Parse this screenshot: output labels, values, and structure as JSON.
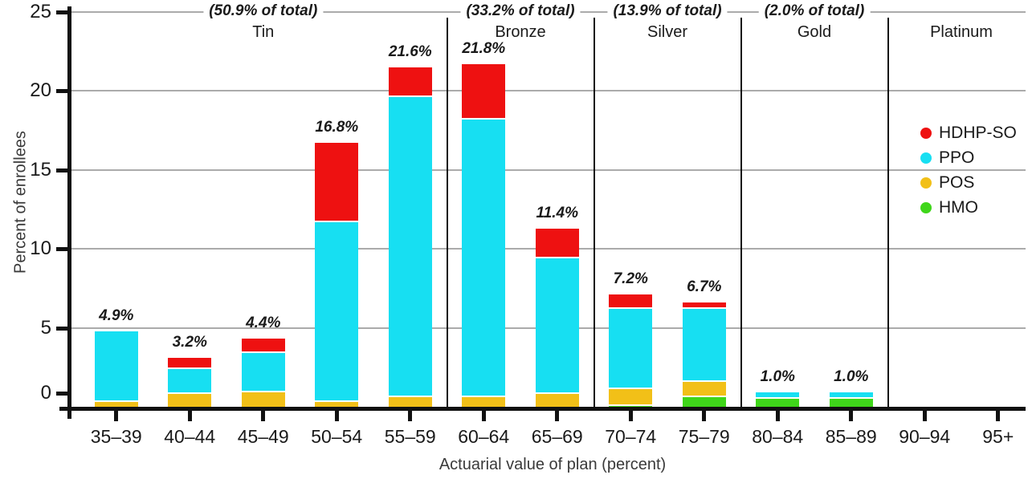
{
  "chart_data": {
    "type": "bar",
    "subtype": "stacked-vertical",
    "title": "",
    "ylabel": "Percent of enrollees",
    "xlabel": "Actuarial value of plan (percent)",
    "ylim": [
      0,
      25
    ],
    "yticks": [
      0,
      5,
      10,
      15,
      20,
      25
    ],
    "grid": "horizontal-gray-lines",
    "legend_position": "right",
    "stack_order_bottom_to_top": [
      "HMO",
      "POS",
      "PPO",
      "HDHP-SO"
    ],
    "legend": [
      {
        "name": "HDHP-SO",
        "color": "#ee1111"
      },
      {
        "name": "PPO",
        "color": "#17dff2"
      },
      {
        "name": "POS",
        "color": "#f2c018"
      },
      {
        "name": "HMO",
        "color": "#3fd61a"
      }
    ],
    "groups": [
      {
        "name": "Tin",
        "share_label": "(50.9% of total)",
        "categories": [
          "35–39",
          "40–44",
          "45–49",
          "50–54",
          "55–59"
        ]
      },
      {
        "name": "Bronze",
        "share_label": "(33.2% of total)",
        "categories": [
          "60–64",
          "65–69"
        ]
      },
      {
        "name": "Silver",
        "share_label": "(13.9% of total)",
        "categories": [
          "70–74",
          "75–79"
        ]
      },
      {
        "name": "Gold",
        "share_label": "(2.0% of total)",
        "categories": [
          "80–84",
          "85–89"
        ]
      },
      {
        "name": "Platinum",
        "share_label": "",
        "categories": [
          "90–94",
          "95+"
        ]
      }
    ],
    "bars": [
      {
        "category": "35–39",
        "total": 4.9,
        "total_label": "4.9%",
        "segments": {
          "POS": 0.5,
          "PPO": 4.4
        }
      },
      {
        "category": "40–44",
        "total": 3.2,
        "total_label": "3.2%",
        "segments": {
          "POS": 1.0,
          "PPO": 1.6,
          "HDHP-SO": 0.6
        }
      },
      {
        "category": "45–49",
        "total": 4.4,
        "total_label": "4.4%",
        "segments": {
          "POS": 1.1,
          "PPO": 2.5,
          "HDHP-SO": 0.8
        }
      },
      {
        "category": "50–54",
        "total": 16.8,
        "total_label": "16.8%",
        "segments": {
          "POS": 0.5,
          "PPO": 11.4,
          "HDHP-SO": 4.9
        }
      },
      {
        "category": "55–59",
        "total": 21.6,
        "total_label": "21.6%",
        "segments": {
          "POS": 0.8,
          "PPO": 19.0,
          "HDHP-SO": 1.8
        }
      },
      {
        "category": "60–64",
        "total": 21.8,
        "total_label": "21.8%",
        "segments": {
          "POS": 0.8,
          "PPO": 17.6,
          "HDHP-SO": 3.4
        }
      },
      {
        "category": "65–69",
        "total": 11.4,
        "total_label": "11.4%",
        "segments": {
          "POS": 1.0,
          "PPO": 8.6,
          "HDHP-SO": 1.8
        }
      },
      {
        "category": "70–74",
        "total": 7.2,
        "total_label": "7.2%",
        "segments": {
          "HMO": 0.25,
          "POS": 1.05,
          "PPO": 5.1,
          "HDHP-SO": 0.8
        }
      },
      {
        "category": "75–79",
        "total": 6.7,
        "total_label": "6.7%",
        "segments": {
          "HMO": 0.8,
          "POS": 1.0,
          "PPO": 4.6,
          "HDHP-SO": 0.3
        }
      },
      {
        "category": "80–84",
        "total": 1.0,
        "total_label": "1.0%",
        "segments": {
          "HMO": 0.7,
          "PPO": 0.3
        }
      },
      {
        "category": "85–89",
        "total": 1.0,
        "total_label": "1.0%",
        "segments": {
          "HMO": 0.7,
          "PPO": 0.3
        }
      },
      {
        "category": "90–94",
        "total": 0,
        "total_label": "",
        "segments": {}
      },
      {
        "category": "95+",
        "total": 0,
        "total_label": "",
        "segments": {}
      }
    ],
    "colors": {
      "HDHP-SO": "#ee1111",
      "PPO": "#17dff2",
      "POS": "#f2c018",
      "HMO": "#3fd61a",
      "gridline": "#ababab",
      "axis": "#111111",
      "text": "#1a1a1a",
      "axis_title_text": "#3a3a3a"
    }
  }
}
